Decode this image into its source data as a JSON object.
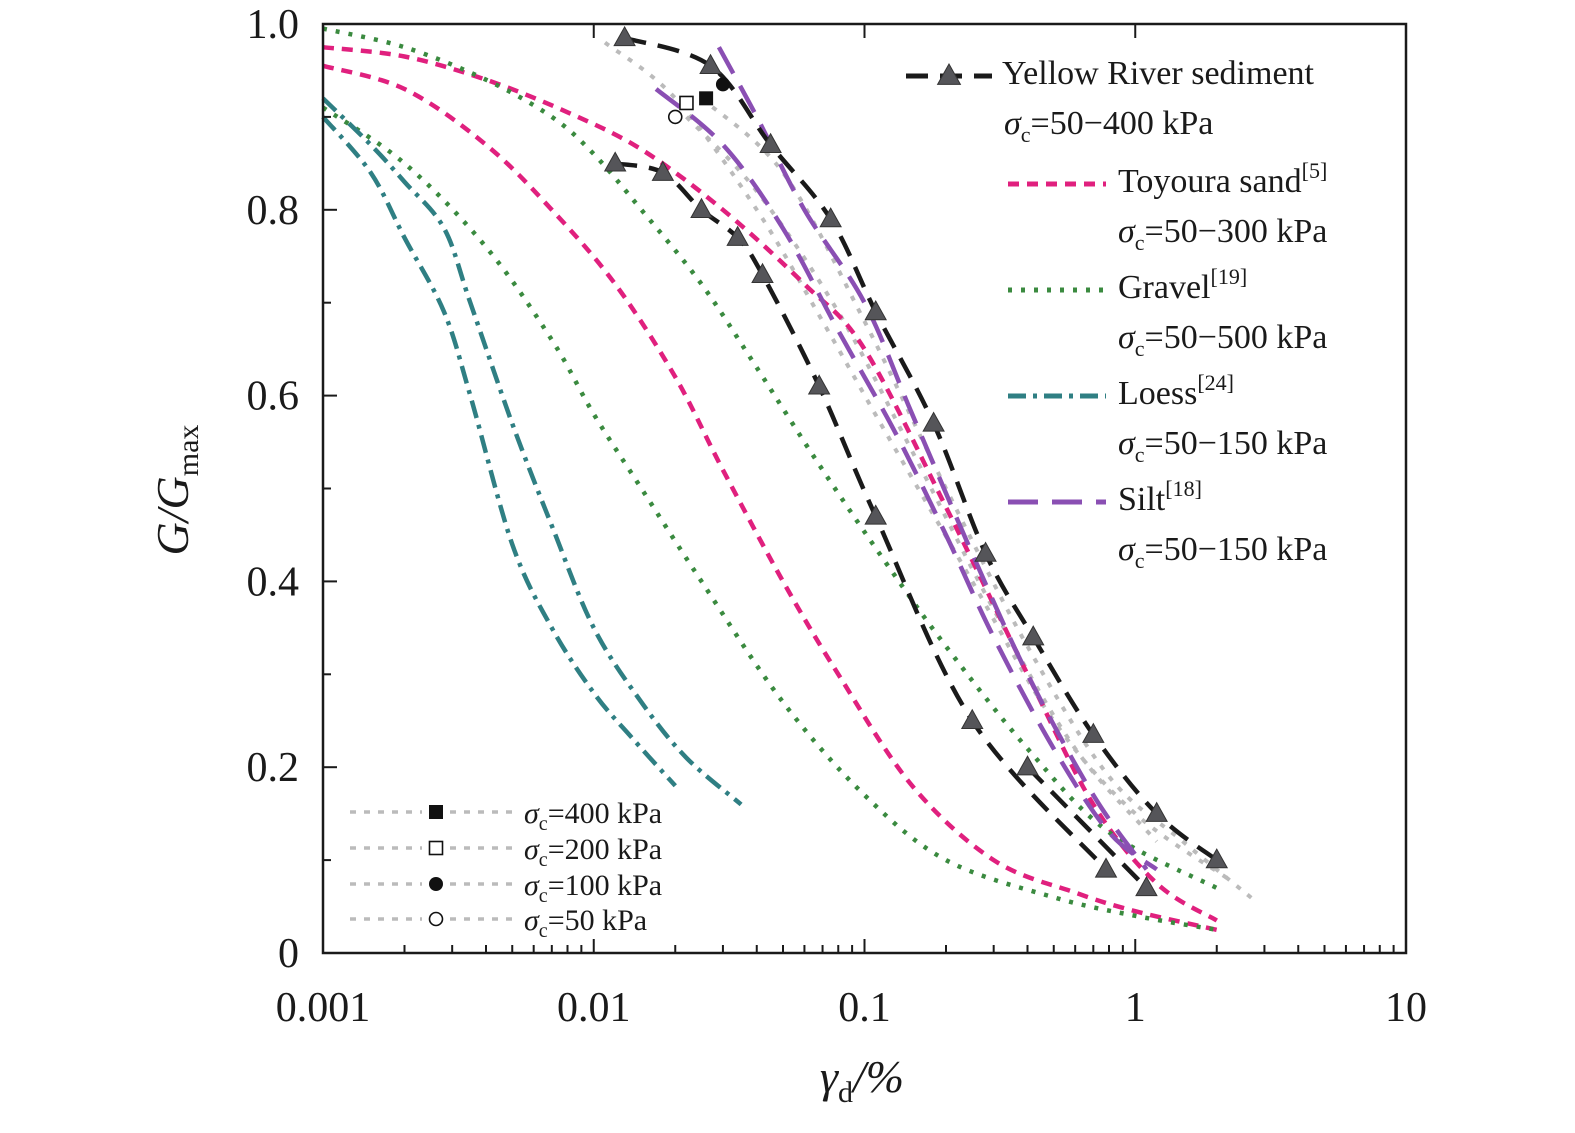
{
  "chart_data": {
    "type": "line",
    "ylabel_parts": {
      "main": "G/G",
      "sub": "max"
    },
    "xlabel_parts": {
      "main": "γ",
      "sub": "d",
      "tail": "/%"
    },
    "xscale": "log",
    "xlim": [
      0.001,
      10
    ],
    "ylim": [
      0,
      1.0
    ],
    "x_ticks": [
      {
        "value": 0.001,
        "label": "0.001"
      },
      {
        "value": 0.01,
        "label": "0.01"
      },
      {
        "value": 0.1,
        "label": "0.1"
      },
      {
        "value": 1,
        "label": "1"
      },
      {
        "value": 10,
        "label": "10"
      }
    ],
    "y_ticks": [
      {
        "value": 0,
        "label": "0"
      },
      {
        "value": 0.2,
        "label": "0.2"
      },
      {
        "value": 0.4,
        "label": "0.4"
      },
      {
        "value": 0.6,
        "label": "0.6"
      },
      {
        "value": 0.8,
        "label": "0.8"
      },
      {
        "value": 1.0,
        "label": "1.0"
      }
    ],
    "grid": false,
    "legend_placement": "top-right",
    "legend": [
      {
        "name": "Yellow River sediment",
        "ref": "",
        "sigma": "=50−400 kPa",
        "color": "#1a1a1a",
        "style": "dash-triangle"
      },
      {
        "name": "Toyoura sand",
        "ref": "[5]",
        "sigma": "=50−300 kPa",
        "color": "#e0207e",
        "style": "short-dash"
      },
      {
        "name": "Gravel",
        "ref": "[19]",
        "sigma": "=50−500 kPa",
        "color": "#3a8a3f",
        "style": "dot"
      },
      {
        "name": "Loess",
        "ref": "[24]",
        "sigma": "=50−150 kPa",
        "color": "#2f7f83",
        "style": "dash-dot"
      },
      {
        "name": "Silt",
        "ref": "[18]",
        "sigma": "=50−150 kPa",
        "color": "#8a4fb3",
        "style": "long-dash"
      }
    ],
    "pressure_legend_placement": "bottom-left",
    "pressure_legend": [
      {
        "label": "=400 kPa",
        "marker": "filled-square"
      },
      {
        "label": "=200 kPa",
        "marker": "open-square"
      },
      {
        "label": "=100 kPa",
        "marker": "filled-circle"
      },
      {
        "label": "=50 kPa",
        "marker": "open-circle"
      }
    ],
    "series": [
      {
        "group": "Yellow River sediment",
        "pressure": "400 kPa",
        "color": "#1a1a1a",
        "style": "dash-triangle",
        "points": [
          [
            0.013,
            0.985
          ],
          [
            0.027,
            0.955
          ],
          [
            0.045,
            0.87
          ],
          [
            0.075,
            0.79
          ],
          [
            0.11,
            0.69
          ],
          [
            0.18,
            0.57
          ],
          [
            0.28,
            0.43
          ],
          [
            0.42,
            0.34
          ],
          [
            0.7,
            0.235
          ],
          [
            1.2,
            0.15
          ],
          [
            2.0,
            0.1
          ]
        ]
      },
      {
        "group": "Yellow River sediment",
        "pressure": "50 kPa",
        "color": "#1a1a1a",
        "style": "dash-triangle",
        "points": [
          [
            0.012,
            0.85
          ],
          [
            0.018,
            0.84
          ],
          [
            0.025,
            0.8
          ],
          [
            0.034,
            0.77
          ],
          [
            0.042,
            0.73
          ],
          [
            0.068,
            0.61
          ],
          [
            0.11,
            0.47
          ],
          [
            0.25,
            0.25
          ],
          [
            0.78,
            0.09
          ]
        ]
      },
      {
        "group": "Yellow River sediment",
        "pressure": "",
        "color": "#1a1a1a",
        "style": "dash-triangle",
        "points": [
          [
            0.4,
            0.2
          ],
          [
            1.1,
            0.07
          ]
        ]
      },
      {
        "group": "Yellow River sediment",
        "pressure": "400 kPa",
        "color": "#bbbbbb",
        "style": "dot-gray",
        "points": [
          [
            0.025,
            0.92
          ],
          [
            0.05,
            0.84
          ],
          [
            0.1,
            0.68
          ],
          [
            0.2,
            0.5
          ],
          [
            0.4,
            0.33
          ],
          [
            0.8,
            0.19
          ],
          [
            1.5,
            0.12
          ],
          [
            2.8,
            0.055
          ]
        ]
      },
      {
        "group": "Yellow River sediment",
        "pressure": "200 kPa",
        "color": "#bbbbbb",
        "style": "dot-gray",
        "points": [
          [
            0.011,
            0.98
          ],
          [
            0.02,
            0.92
          ],
          [
            0.04,
            0.8
          ],
          [
            0.07,
            0.68
          ],
          [
            0.12,
            0.56
          ],
          [
            0.25,
            0.4
          ],
          [
            0.5,
            0.25
          ],
          [
            1.0,
            0.15
          ],
          [
            2.2,
            0.08
          ]
        ]
      },
      {
        "group": "Yellow River sediment",
        "pressure": "100 kPa",
        "color": "#bbbbbb",
        "style": "dot-gray",
        "points": [
          [
            0.022,
            0.9
          ],
          [
            0.04,
            0.82
          ],
          [
            0.08,
            0.69
          ],
          [
            0.15,
            0.54
          ],
          [
            0.3,
            0.37
          ],
          [
            0.6,
            0.22
          ],
          [
            1.2,
            0.12
          ]
        ]
      },
      {
        "group": "Toyoura sand",
        "pressure": "",
        "color": "#e0207e",
        "style": "short-dash",
        "points": [
          [
            0.001,
            0.975
          ],
          [
            0.002,
            0.965
          ],
          [
            0.004,
            0.94
          ],
          [
            0.008,
            0.905
          ],
          [
            0.015,
            0.865
          ],
          [
            0.03,
            0.8
          ],
          [
            0.06,
            0.72
          ],
          [
            0.1,
            0.65
          ],
          [
            0.2,
            0.48
          ],
          [
            0.4,
            0.3
          ],
          [
            0.7,
            0.16
          ],
          [
            1.2,
            0.075
          ],
          [
            2.0,
            0.035
          ]
        ]
      },
      {
        "group": "Toyoura sand",
        "pressure": "",
        "color": "#e0207e",
        "style": "short-dash",
        "points": [
          [
            0.001,
            0.955
          ],
          [
            0.002,
            0.93
          ],
          [
            0.004,
            0.87
          ],
          [
            0.007,
            0.8
          ],
          [
            0.012,
            0.72
          ],
          [
            0.02,
            0.62
          ],
          [
            0.03,
            0.52
          ],
          [
            0.05,
            0.4
          ],
          [
            0.08,
            0.3
          ],
          [
            0.15,
            0.18
          ],
          [
            0.3,
            0.1
          ],
          [
            0.6,
            0.065
          ],
          [
            1.0,
            0.045
          ],
          [
            2.0,
            0.025
          ]
        ]
      },
      {
        "group": "Gravel",
        "pressure": "",
        "color": "#3a8a3f",
        "style": "dot",
        "points": [
          [
            0.001,
            0.995
          ],
          [
            0.002,
            0.975
          ],
          [
            0.004,
            0.94
          ],
          [
            0.007,
            0.9
          ],
          [
            0.01,
            0.86
          ],
          [
            0.015,
            0.8
          ],
          [
            0.025,
            0.72
          ],
          [
            0.04,
            0.63
          ],
          [
            0.07,
            0.52
          ],
          [
            0.12,
            0.42
          ],
          [
            0.2,
            0.33
          ],
          [
            0.4,
            0.22
          ],
          [
            0.8,
            0.13
          ],
          [
            2.0,
            0.07
          ]
        ]
      },
      {
        "group": "Gravel",
        "pressure": "",
        "color": "#3a8a3f",
        "style": "dot",
        "points": [
          [
            0.001,
            0.91
          ],
          [
            0.002,
            0.85
          ],
          [
            0.004,
            0.76
          ],
          [
            0.007,
            0.66
          ],
          [
            0.01,
            0.58
          ],
          [
            0.015,
            0.5
          ],
          [
            0.025,
            0.4
          ],
          [
            0.05,
            0.27
          ],
          [
            0.1,
            0.17
          ],
          [
            0.2,
            0.1
          ],
          [
            0.5,
            0.06
          ],
          [
            1.0,
            0.04
          ],
          [
            2.0,
            0.025
          ]
        ]
      },
      {
        "group": "Loess",
        "pressure": "",
        "color": "#2f7f83",
        "style": "dash-dot",
        "points": [
          [
            0.001,
            0.92
          ],
          [
            0.0015,
            0.87
          ],
          [
            0.002,
            0.83
          ],
          [
            0.0028,
            0.78
          ],
          [
            0.0035,
            0.7
          ],
          [
            0.005,
            0.57
          ],
          [
            0.007,
            0.46
          ],
          [
            0.01,
            0.35
          ],
          [
            0.015,
            0.27
          ],
          [
            0.022,
            0.21
          ],
          [
            0.035,
            0.16
          ]
        ]
      },
      {
        "group": "Loess",
        "pressure": "",
        "color": "#2f7f83",
        "style": "dash-dot",
        "points": [
          [
            0.001,
            0.9
          ],
          [
            0.0015,
            0.84
          ],
          [
            0.002,
            0.77
          ],
          [
            0.0028,
            0.69
          ],
          [
            0.0035,
            0.6
          ],
          [
            0.005,
            0.44
          ],
          [
            0.007,
            0.35
          ],
          [
            0.01,
            0.28
          ],
          [
            0.014,
            0.23
          ],
          [
            0.02,
            0.18
          ]
        ]
      },
      {
        "group": "Silt",
        "pressure": "",
        "color": "#8a4fb3",
        "style": "long-dash",
        "points": [
          [
            0.029,
            0.975
          ],
          [
            0.04,
            0.9
          ],
          [
            0.06,
            0.8
          ],
          [
            0.1,
            0.7
          ],
          [
            0.15,
            0.58
          ],
          [
            0.25,
            0.43
          ],
          [
            0.4,
            0.3
          ],
          [
            0.7,
            0.17
          ],
          [
            1.1,
            0.09
          ]
        ]
      },
      {
        "group": "Silt",
        "pressure": "",
        "color": "#8a4fb3",
        "style": "long-dash",
        "points": [
          [
            0.017,
            0.93
          ],
          [
            0.03,
            0.87
          ],
          [
            0.05,
            0.78
          ],
          [
            0.08,
            0.67
          ],
          [
            0.13,
            0.56
          ],
          [
            0.2,
            0.45
          ],
          [
            0.3,
            0.34
          ],
          [
            0.5,
            0.22
          ],
          [
            0.8,
            0.13
          ],
          [
            1.2,
            0.09
          ]
        ]
      }
    ],
    "pressure_markers": [
      {
        "x": 0.026,
        "y": 0.92,
        "marker": "filled-square"
      },
      {
        "x": 0.022,
        "y": 0.915,
        "marker": "open-square"
      },
      {
        "x": 0.03,
        "y": 0.935,
        "marker": "filled-circle"
      },
      {
        "x": 0.02,
        "y": 0.9,
        "marker": "open-circle"
      }
    ]
  }
}
